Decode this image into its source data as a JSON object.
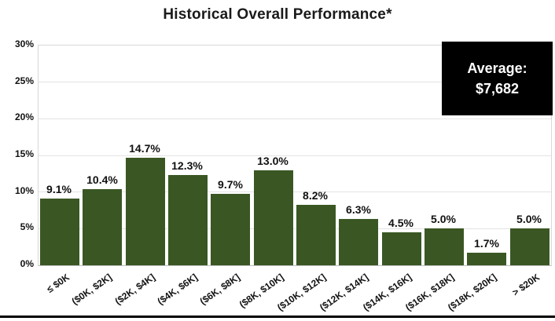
{
  "title": "Historical Overall Performance*",
  "average_box": {
    "label": "Average:",
    "value": "$7,682"
  },
  "colors": {
    "bar": "#3a5723",
    "gridline": "#e3e3e3",
    "axis_border": "#d9d9d9",
    "annotation_bg": "#000000",
    "annotation_text": "#ffffff"
  },
  "chart_data": {
    "type": "bar",
    "title": "Historical Overall Performance*",
    "categories": [
      "≤ $0K",
      "($0K, $2K]",
      "($2K, $4K]",
      "($4K, $6K]",
      "($6K, $8K]",
      "($8K, $10K]",
      "($10K, $12K]",
      "($12K, $14K]",
      "($14K, $16K]",
      "($16K, $18K]",
      "($18K, $20K]",
      "> $20K"
    ],
    "values": [
      9.1,
      10.4,
      14.7,
      12.3,
      9.7,
      13.0,
      8.2,
      6.3,
      4.5,
      5.0,
      1.7,
      5.0
    ],
    "value_labels": [
      "9.1%",
      "10.4%",
      "14.7%",
      "12.3%",
      "9.7%",
      "13.0%",
      "8.2%",
      "6.3%",
      "4.5%",
      "5.0%",
      "1.7%",
      "5.0%"
    ],
    "xlabel": "",
    "ylabel": "",
    "ylim": [
      0,
      30
    ],
    "ytick_step": 5,
    "ytick_labels": [
      "0%",
      "5%",
      "10%",
      "15%",
      "20%",
      "25%",
      "30%"
    ],
    "grid": true,
    "legend": null,
    "annotation": "Average: $7,682"
  }
}
